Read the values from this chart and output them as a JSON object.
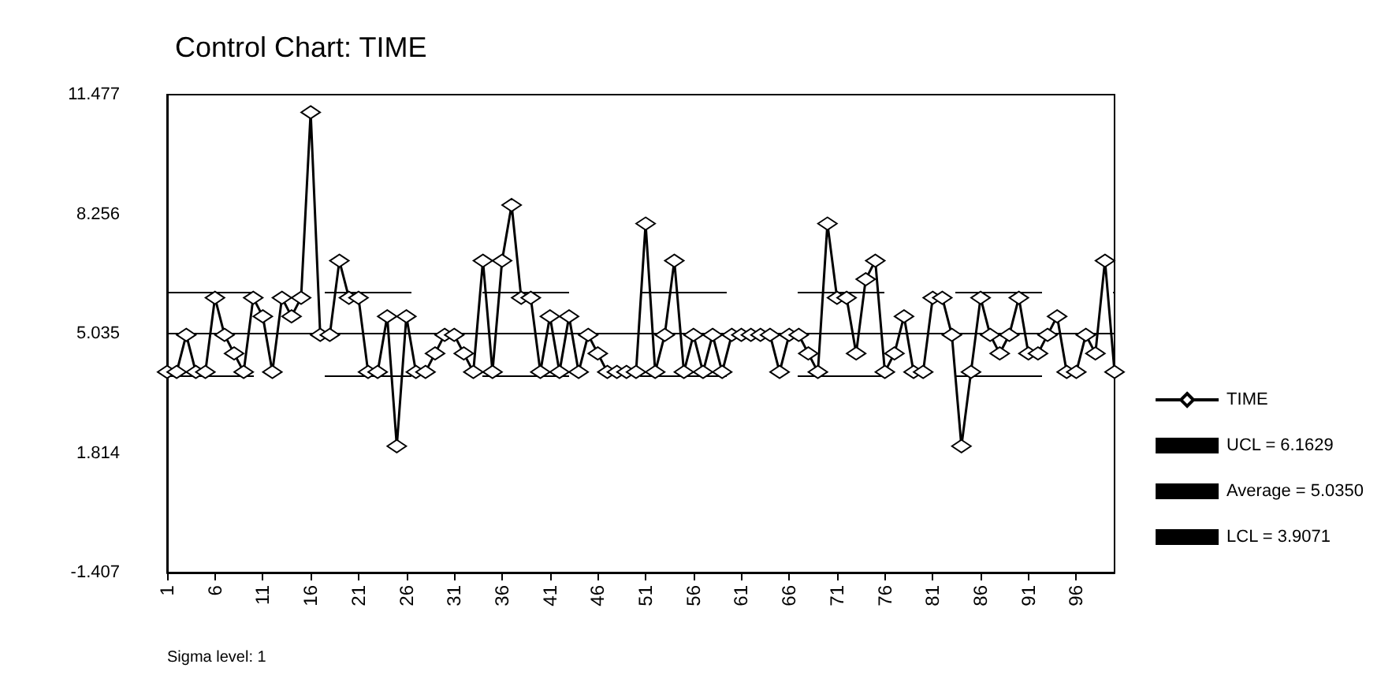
{
  "chart_data": {
    "type": "line",
    "title": "Control Chart: TIME",
    "annotations": [
      "Sigma level: 1"
    ],
    "x": [
      1,
      2,
      3,
      4,
      5,
      6,
      7,
      8,
      9,
      10,
      11,
      12,
      13,
      14,
      15,
      16,
      17,
      18,
      19,
      20,
      21,
      22,
      23,
      24,
      25,
      26,
      27,
      28,
      29,
      30,
      31,
      32,
      33,
      34,
      35,
      36,
      37,
      38,
      39,
      40,
      41,
      42,
      43,
      44,
      45,
      46,
      47,
      48,
      49,
      50,
      51,
      52,
      53,
      54,
      55,
      56,
      57,
      58,
      59,
      60,
      61,
      62,
      63,
      64,
      65,
      66,
      67,
      68,
      69,
      70,
      71,
      72,
      73,
      74,
      75,
      76,
      77,
      78,
      79,
      80,
      81,
      82,
      83,
      84,
      85,
      86,
      87,
      88,
      89,
      90,
      91,
      92,
      93,
      94,
      95,
      96,
      97,
      98,
      99,
      100
    ],
    "series": [
      {
        "name": "TIME",
        "color": "#000000",
        "values": [
          4,
          4,
          5,
          4,
          4,
          6,
          5,
          4.5,
          4,
          6,
          5.5,
          4,
          6,
          5.5,
          6,
          11,
          5,
          5,
          7,
          6,
          6,
          4,
          4,
          5.5,
          2,
          5.5,
          4,
          4,
          4.5,
          5,
          5,
          4.5,
          4,
          7,
          4,
          7,
          8.5,
          6,
          6,
          4,
          5.5,
          4,
          5.5,
          4,
          5,
          4.5,
          4,
          4,
          4,
          4,
          8,
          4,
          5,
          7,
          4,
          5,
          4,
          5,
          4,
          5,
          5,
          5,
          5,
          5,
          4,
          5,
          5,
          4.5,
          4,
          8,
          6,
          6,
          4.5,
          6.5,
          7,
          4,
          4.5,
          5.5,
          4,
          4,
          6,
          6,
          5,
          2,
          4,
          6,
          5,
          4.5,
          5,
          6,
          4.5,
          4.5,
          5,
          5.5,
          4,
          4,
          5,
          4.5,
          7,
          4
        ]
      }
    ],
    "xlim": [
      1,
      100
    ],
    "xticks": [
      1,
      6,
      11,
      16,
      21,
      26,
      31,
      36,
      41,
      46,
      51,
      56,
      61,
      66,
      71,
      76,
      81,
      86,
      91,
      96
    ],
    "ylim": [
      -1.407,
      11.477
    ],
    "yticks": [
      -1.407,
      1.814,
      5.035,
      8.256,
      11.477
    ],
    "ref_lines": [
      {
        "axis": "y",
        "value": 6.1629,
        "label": "UCL = 6.1629",
        "color": "#000000",
        "line_style": "dashed"
      },
      {
        "axis": "y",
        "value": 5.035,
        "label": "Average = 5.0350",
        "color": "#000000",
        "line_style": "solid"
      },
      {
        "axis": "y",
        "value": 3.9071,
        "label": "LCL = 3.9071",
        "color": "#000000",
        "line_style": "dashed"
      }
    ],
    "marker": "diamond",
    "line_style": "solid",
    "grid": false,
    "legend": "right"
  }
}
